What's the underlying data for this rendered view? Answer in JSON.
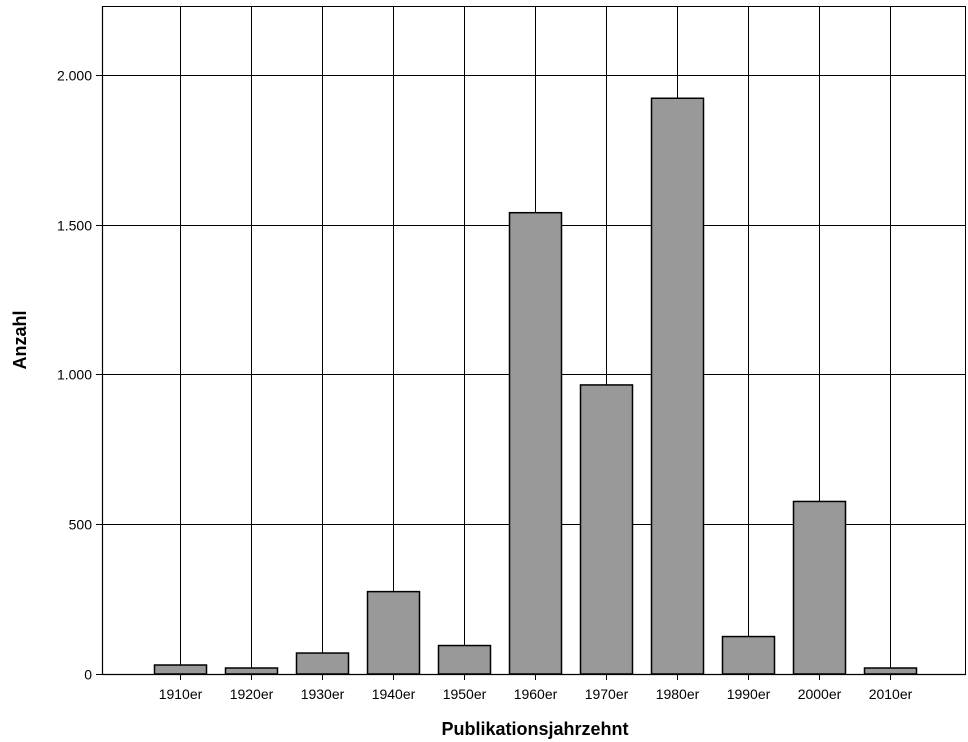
{
  "chart_data": {
    "type": "bar",
    "categories": [
      "1910er",
      "1920er",
      "1930er",
      "1940er",
      "1950er",
      "1960er",
      "1970er",
      "1980er",
      "1990er",
      "2000er",
      "2010er"
    ],
    "values": [
      30,
      20,
      70,
      275,
      95,
      1540,
      965,
      1922,
      125,
      576,
      20
    ],
    "xlabel": "Publikationsjahrzehnt",
    "ylabel": "Anzahl",
    "ylim": [
      0,
      2230
    ],
    "yticks": [
      0,
      500,
      1000,
      1500,
      2000
    ],
    "ytick_labels": [
      "0",
      "500",
      "1.000",
      "1.500",
      "2.000"
    ],
    "grid": true,
    "bar_color": "#999999",
    "bar_edge_color": "#000000"
  }
}
